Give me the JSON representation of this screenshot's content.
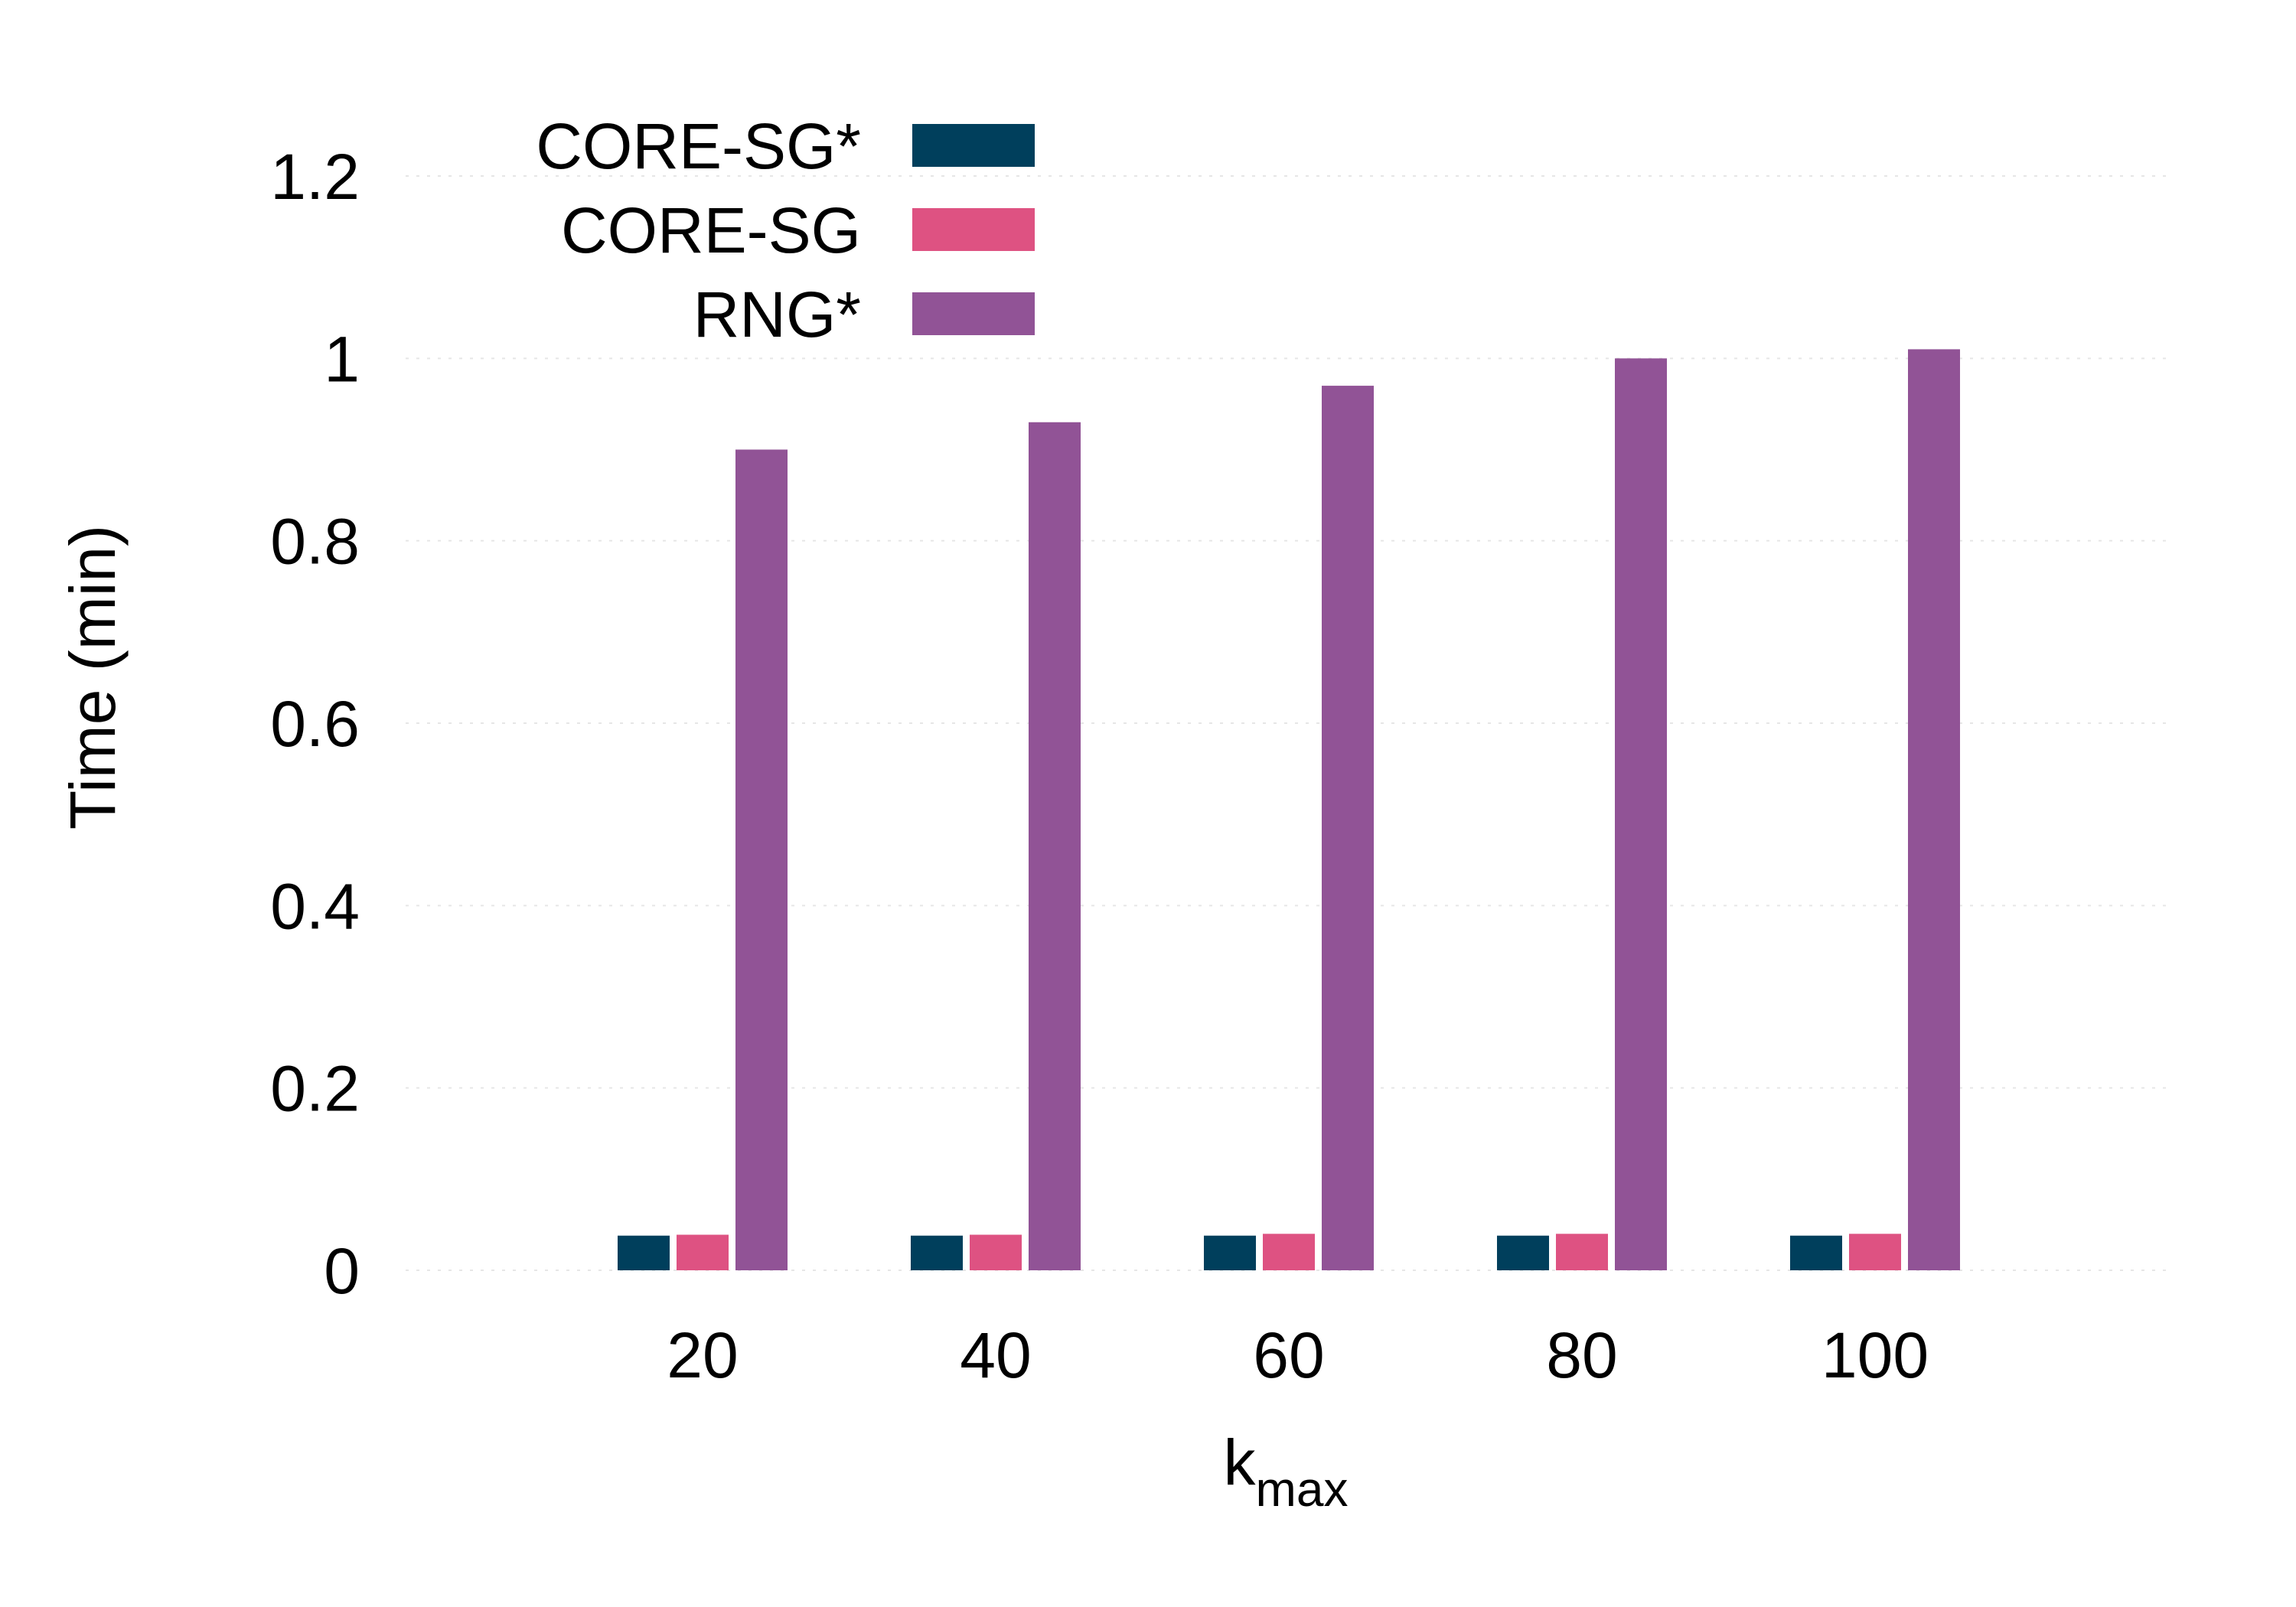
{
  "chart_data": {
    "type": "bar",
    "categories": [
      "20",
      "40",
      "60",
      "80",
      "100"
    ],
    "series": [
      {
        "name": "CORE-SG*",
        "color": "#003f5c",
        "values": [
          0.038,
          0.038,
          0.038,
          0.038,
          0.038
        ]
      },
      {
        "name": "CORE-SG",
        "color": "#de5282",
        "values": [
          0.039,
          0.039,
          0.04,
          0.04,
          0.04
        ]
      },
      {
        "name": "RNG*",
        "color": "#915396",
        "values": [
          0.9,
          0.93,
          0.97,
          1.0,
          1.01
        ]
      }
    ],
    "xlabel": {
      "main": "k",
      "sub": "max"
    },
    "ylabel": "Time (min)",
    "ylim": [
      0,
      1.2
    ],
    "yticks": [
      "0",
      "0.2",
      "0.4",
      "0.6",
      "0.8",
      "1",
      "1.2"
    ],
    "grid": "horizontal, dotted",
    "legend_position": "top-left"
  }
}
